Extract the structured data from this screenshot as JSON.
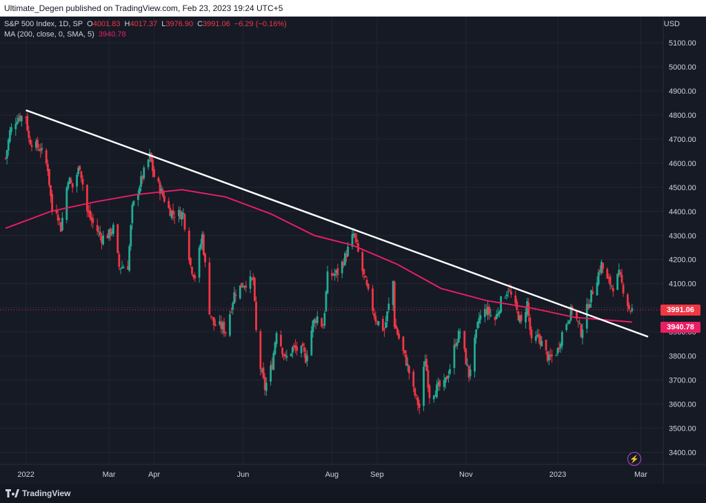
{
  "header": {
    "publish_text": "Ultimate_Degen published on TradingView.com, Feb 23, 2023 19:24 UTC+5"
  },
  "legend": {
    "symbol": "S&P 500 Index, 1D, SP",
    "open_label": "O",
    "open": "4001.83",
    "high_label": "H",
    "high": "4017.37",
    "low_label": "L",
    "low": "3976.90",
    "close_label": "C",
    "close": "3991.06",
    "change": "−6.29 (−0.16%)",
    "ma_label": "MA (200, close, 0, SMA, 5)",
    "ma_value": "3940.78"
  },
  "currency": "USD",
  "price_tags": {
    "last_price": "3991.06",
    "ma_price": "3940.78",
    "last_color": "#f23645",
    "ma_color": "#e91e63"
  },
  "footer": {
    "brand": "TradingView"
  },
  "colors": {
    "background": "#161a25",
    "up": "#22ab94",
    "down": "#f23645",
    "ma": "#e91e63",
    "trendline": "#ffffff",
    "axis_text": "#d1d4dc",
    "grid": "#232632"
  },
  "chart_data": {
    "type": "candlestick",
    "title": "S&P 500 Index, 1D, SP",
    "ylim": [
      3350,
      5180
    ],
    "y_ticks": [
      5100,
      5000,
      4900,
      4800,
      4700,
      4600,
      4500,
      4400,
      4300,
      4200,
      4100,
      4000,
      3900,
      3800,
      3700,
      3600,
      3500,
      3400
    ],
    "y_tick_labels": [
      "5100.00",
      "5000.00",
      "4900.00",
      "4800.00",
      "4700.00",
      "4600.00",
      "4500.00",
      "4400.00",
      "4300.00",
      "4200.00",
      "4100.00",
      "4000.00",
      "3900.00",
      "3800.00",
      "3700.00",
      "3600.00",
      "3500.00",
      "3400.00"
    ],
    "x_range": [
      "2021-12-20",
      "2023-03-06"
    ],
    "x_ticks": [
      {
        "date": "2022-01-03",
        "label": "2022"
      },
      {
        "date": "2022-03-01",
        "label": "Mar"
      },
      {
        "date": "2022-04-01",
        "label": "Apr"
      },
      {
        "date": "2022-06-01",
        "label": "Jun"
      },
      {
        "date": "2022-08-01",
        "label": "Aug"
      },
      {
        "date": "2022-09-01",
        "label": "Sep"
      },
      {
        "date": "2022-11-01",
        "label": "Nov"
      },
      {
        "date": "2023-01-03",
        "label": "2023"
      },
      {
        "date": "2023-03-01",
        "label": "Mar"
      }
    ],
    "close_series": [
      [
        "2021-12-20",
        4620
      ],
      [
        "2021-12-23",
        4730
      ],
      [
        "2021-12-28",
        4790
      ],
      [
        "2022-01-03",
        4796
      ],
      [
        "2022-01-05",
        4700
      ],
      [
        "2022-01-10",
        4670
      ],
      [
        "2022-01-13",
        4660
      ],
      [
        "2022-01-18",
        4580
      ],
      [
        "2022-01-21",
        4400
      ],
      [
        "2022-01-24",
        4410
      ],
      [
        "2022-01-27",
        4330
      ],
      [
        "2022-02-01",
        4540
      ],
      [
        "2022-02-04",
        4500
      ],
      [
        "2022-02-09",
        4590
      ],
      [
        "2022-02-14",
        4400
      ],
      [
        "2022-02-18",
        4350
      ],
      [
        "2022-02-24",
        4290
      ],
      [
        "2022-03-01",
        4305
      ],
      [
        "2022-03-04",
        4330
      ],
      [
        "2022-03-08",
        4170
      ],
      [
        "2022-03-14",
        4175
      ],
      [
        "2022-03-17",
        4410
      ],
      [
        "2022-03-22",
        4510
      ],
      [
        "2022-03-29",
        4630
      ],
      [
        "2022-04-01",
        4545
      ],
      [
        "2022-04-06",
        4480
      ],
      [
        "2022-04-11",
        4410
      ],
      [
        "2022-04-14",
        4390
      ],
      [
        "2022-04-21",
        4390
      ],
      [
        "2022-04-26",
        4175
      ],
      [
        "2022-04-29",
        4130
      ],
      [
        "2022-05-04",
        4300
      ],
      [
        "2022-05-09",
        3990
      ],
      [
        "2022-05-12",
        3930
      ],
      [
        "2022-05-18",
        3920
      ],
      [
        "2022-05-20",
        3900
      ],
      [
        "2022-05-26",
        4058
      ],
      [
        "2022-06-01",
        4100
      ],
      [
        "2022-06-08",
        4115
      ],
      [
        "2022-06-10",
        3900
      ],
      [
        "2022-06-13",
        3750
      ],
      [
        "2022-06-16",
        3666
      ],
      [
        "2022-06-21",
        3765
      ],
      [
        "2022-06-24",
        3911
      ],
      [
        "2022-06-30",
        3785
      ],
      [
        "2022-07-05",
        3831
      ],
      [
        "2022-07-12",
        3819
      ],
      [
        "2022-07-14",
        3790
      ],
      [
        "2022-07-19",
        3936
      ],
      [
        "2022-07-22",
        3962
      ],
      [
        "2022-07-26",
        3921
      ],
      [
        "2022-07-29",
        4130
      ],
      [
        "2022-08-05",
        4145
      ],
      [
        "2022-08-10",
        4210
      ],
      [
        "2022-08-16",
        4305
      ],
      [
        "2022-08-19",
        4228
      ],
      [
        "2022-08-23",
        4128
      ],
      [
        "2022-08-26",
        4057
      ],
      [
        "2022-08-31",
        3955
      ],
      [
        "2022-09-06",
        3908
      ],
      [
        "2022-09-12",
        4110
      ],
      [
        "2022-09-13",
        3932
      ],
      [
        "2022-09-16",
        3873
      ],
      [
        "2022-09-22",
        3757
      ],
      [
        "2022-09-26",
        3655
      ],
      [
        "2022-09-30",
        3586
      ],
      [
        "2022-10-04",
        3791
      ],
      [
        "2022-10-07",
        3640
      ],
      [
        "2022-10-13",
        3669
      ],
      [
        "2022-10-17",
        3677
      ],
      [
        "2022-10-21",
        3752
      ],
      [
        "2022-10-25",
        3859
      ],
      [
        "2022-10-28",
        3901
      ],
      [
        "2022-11-03",
        3720
      ],
      [
        "2022-11-10",
        3956
      ],
      [
        "2022-11-15",
        3992
      ],
      [
        "2022-11-21",
        3950
      ],
      [
        "2022-11-25",
        4026
      ],
      [
        "2022-11-30",
        4080
      ],
      [
        "2022-12-05",
        3999
      ],
      [
        "2022-12-09",
        3934
      ],
      [
        "2022-12-13",
        4020
      ],
      [
        "2022-12-16",
        3852
      ],
      [
        "2022-12-21",
        3879
      ],
      [
        "2022-12-28",
        3783
      ],
      [
        "2023-01-03",
        3824
      ],
      [
        "2023-01-06",
        3895
      ],
      [
        "2023-01-11",
        3970
      ],
      [
        "2023-01-13",
        3999
      ],
      [
        "2023-01-19",
        3899
      ],
      [
        "2023-01-24",
        4017
      ],
      [
        "2023-01-27",
        4071
      ],
      [
        "2023-02-02",
        4180
      ],
      [
        "2023-02-06",
        4111
      ],
      [
        "2023-02-10",
        4090
      ],
      [
        "2023-02-14",
        4136
      ],
      [
        "2023-02-17",
        4079
      ],
      [
        "2023-02-21",
        3997
      ],
      [
        "2023-02-23",
        3991
      ]
    ],
    "series": [
      {
        "name": "MA (200, close, 0, SMA, 5)",
        "x": [
          "2021-12-20",
          "2022-01-20",
          "2022-02-20",
          "2022-03-20",
          "2022-04-20",
          "2022-05-20",
          "2022-06-20",
          "2022-07-20",
          "2022-08-15",
          "2022-09-15",
          "2022-10-15",
          "2022-11-15",
          "2022-12-15",
          "2023-01-15",
          "2023-02-23"
        ],
        "values": [
          4330,
          4400,
          4440,
          4470,
          4490,
          4460,
          4390,
          4300,
          4260,
          4180,
          4080,
          4030,
          4000,
          3960,
          3940.78
        ]
      },
      {
        "name": "Trendline",
        "x": [
          "2022-01-03",
          "2023-03-06"
        ],
        "values": [
          4820,
          3880
        ]
      }
    ],
    "last_price": 3991.06,
    "ma_last": 3940.78
  }
}
